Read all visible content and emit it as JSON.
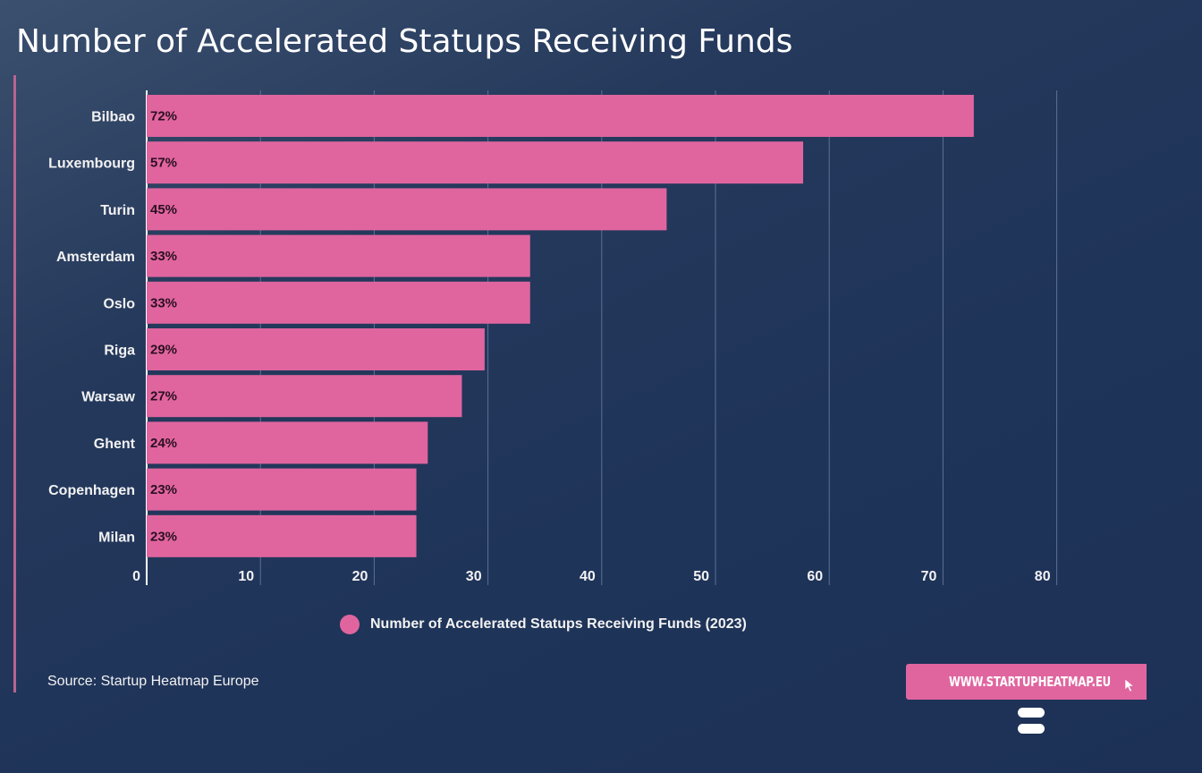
{
  "title": "Number of Accelerated Statups Receiving Funds",
  "colors": {
    "bar": "#e0659f",
    "accent": "#b8648f",
    "grid": "#5d7197",
    "background": "#1f3459"
  },
  "chart_data": {
    "type": "bar",
    "orientation": "horizontal",
    "title": "Number of Accelerated Statups Receiving Funds",
    "categories": [
      "Bilbao",
      "Luxembourg",
      "Turin",
      "Amsterdam",
      "Oslo",
      "Riga",
      "Warsaw",
      "Ghent",
      "Copenhagen",
      "Milan"
    ],
    "series": [
      {
        "name": "Number of Accelerated Statups Receiving Funds (2023)",
        "values": [
          72,
          57,
          45,
          33,
          33,
          29,
          27,
          24,
          23,
          23
        ],
        "labels": [
          "72%",
          "57%",
          "45%",
          "33%",
          "33%",
          "29%",
          "27%",
          "24%",
          "23%",
          "23%"
        ]
      }
    ],
    "xlim": [
      0,
      80
    ],
    "xticks": [
      "0",
      "10",
      "20",
      "30",
      "40",
      "50",
      "60",
      "70",
      "80"
    ],
    "grid": true,
    "legend": "bottom-center"
  },
  "legend": {
    "label": "Number of Accelerated Statups Receiving Funds (2023)"
  },
  "source": "Source: Startup Heatmap Europe",
  "site_button": {
    "label": "WWW.STARTUPHEATMAP.EU",
    "icon": "cursor-icon"
  },
  "brand_logo_icon": "startup-heatmap-logo-icon"
}
